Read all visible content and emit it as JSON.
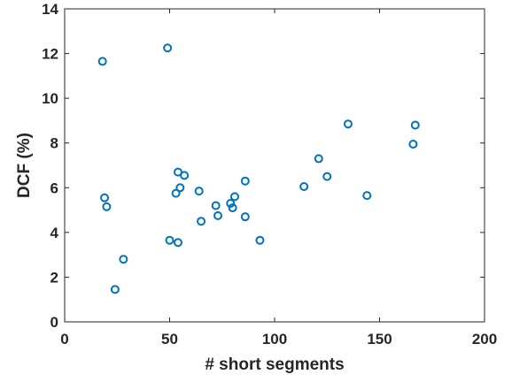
{
  "chart_data": {
    "type": "scatter",
    "title": "",
    "xlabel": "# short segments",
    "ylabel": "DCF (%)",
    "xlim": [
      0,
      200
    ],
    "ylim": [
      0,
      14
    ],
    "xticks": [
      "0",
      "50",
      "100",
      "150",
      "200"
    ],
    "yticks": [
      "0",
      "2",
      "4",
      "6",
      "8",
      "10",
      "12",
      "14"
    ],
    "grid": false,
    "legend": "none",
    "marker": "open-circle",
    "series_color": "#0072BD",
    "axis_color": "#262626",
    "series": [
      {
        "points": [
          {
            "x": 18,
            "y": 11.65
          },
          {
            "x": 19,
            "y": 5.55
          },
          {
            "x": 20,
            "y": 5.15
          },
          {
            "x": 24,
            "y": 1.45
          },
          {
            "x": 28,
            "y": 2.8
          },
          {
            "x": 49,
            "y": 12.25
          },
          {
            "x": 50,
            "y": 3.65
          },
          {
            "x": 53,
            "y": 5.75
          },
          {
            "x": 54,
            "y": 6.7
          },
          {
            "x": 54,
            "y": 3.55
          },
          {
            "x": 55,
            "y": 6.0
          },
          {
            "x": 57,
            "y": 6.55
          },
          {
            "x": 64,
            "y": 5.85
          },
          {
            "x": 65,
            "y": 4.5
          },
          {
            "x": 72,
            "y": 5.2
          },
          {
            "x": 73,
            "y": 4.75
          },
          {
            "x": 79,
            "y": 5.3
          },
          {
            "x": 80,
            "y": 5.1
          },
          {
            "x": 81,
            "y": 5.6
          },
          {
            "x": 86,
            "y": 6.3
          },
          {
            "x": 86,
            "y": 4.7
          },
          {
            "x": 93,
            "y": 3.65
          },
          {
            "x": 114,
            "y": 6.05
          },
          {
            "x": 121,
            "y": 7.3
          },
          {
            "x": 125,
            "y": 6.5
          },
          {
            "x": 135,
            "y": 8.85
          },
          {
            "x": 144,
            "y": 5.65
          },
          {
            "x": 166,
            "y": 7.95
          },
          {
            "x": 167,
            "y": 8.8
          }
        ]
      }
    ]
  }
}
